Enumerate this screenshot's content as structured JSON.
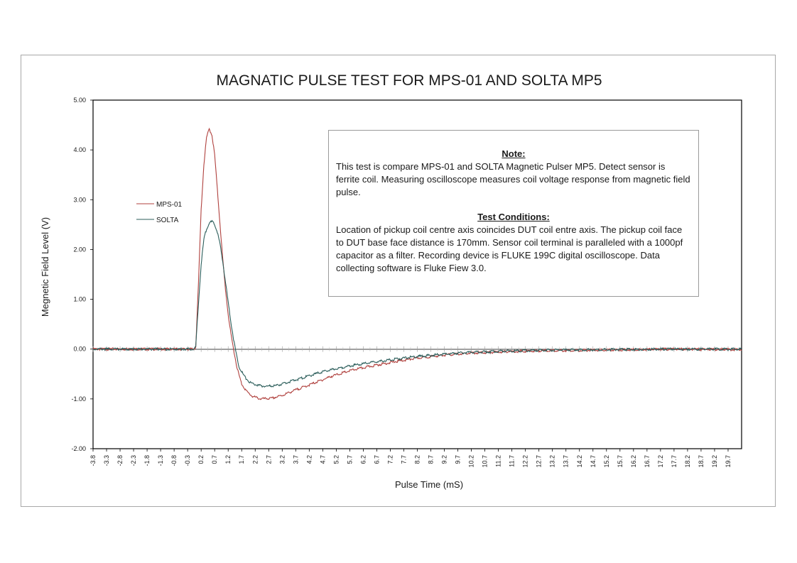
{
  "chart_data": {
    "type": "line",
    "title": "MAGNATIC PULSE TEST FOR MPS-01 AND SOLTA MP5",
    "xlabel": "Pulse Time (mS)",
    "ylabel": "Megnetic Field Level (V)",
    "xlim": [
      -3.8,
      20.2
    ],
    "ylim": [
      -2.0,
      5.0
    ],
    "yticks": [
      "5.00",
      "4.00",
      "3.00",
      "2.00",
      "1.00",
      "0.00",
      "-1.00",
      "-2.00"
    ],
    "ytick_values": [
      5,
      4,
      3,
      2,
      1,
      0,
      -1,
      -2
    ],
    "xtick_start": -3.8,
    "xtick_step": 0.5,
    "xtick_count": 48,
    "grid": false,
    "legend_placement": "left",
    "series": [
      {
        "name": "MPS-01",
        "color": "#b0413e",
        "points": [
          [
            -3.8,
            0.0
          ],
          [
            -0.05,
            0.0
          ],
          [
            0.0,
            0.05
          ],
          [
            0.1,
            1.3
          ],
          [
            0.2,
            2.8
          ],
          [
            0.3,
            3.7
          ],
          [
            0.4,
            4.25
          ],
          [
            0.5,
            4.42
          ],
          [
            0.6,
            4.3
          ],
          [
            0.7,
            3.9
          ],
          [
            0.8,
            3.2
          ],
          [
            0.9,
            2.5
          ],
          [
            1.0,
            1.8
          ],
          [
            1.1,
            1.2
          ],
          [
            1.2,
            0.7
          ],
          [
            1.3,
            0.3
          ],
          [
            1.4,
            0.0
          ],
          [
            1.5,
            -0.3
          ],
          [
            1.6,
            -0.52
          ],
          [
            1.7,
            -0.7
          ],
          [
            1.9,
            -0.86
          ],
          [
            2.1,
            -0.95
          ],
          [
            2.4,
            -1.0
          ],
          [
            2.8,
            -0.99
          ],
          [
            3.2,
            -0.93
          ],
          [
            3.6,
            -0.84
          ],
          [
            4.2,
            -0.72
          ],
          [
            5.0,
            -0.55
          ],
          [
            5.8,
            -0.42
          ],
          [
            6.6,
            -0.33
          ],
          [
            7.4,
            -0.25
          ],
          [
            8.2,
            -0.18
          ],
          [
            9.2,
            -0.12
          ],
          [
            10.2,
            -0.08
          ],
          [
            11.5,
            -0.05
          ],
          [
            13.0,
            -0.03
          ],
          [
            15.0,
            -0.02
          ],
          [
            17.5,
            0.0
          ],
          [
            20.2,
            -0.01
          ]
        ]
      },
      {
        "name": "SOLTA",
        "color": "#2b5d5a",
        "points": [
          [
            -3.8,
            0.0
          ],
          [
            -0.05,
            0.0
          ],
          [
            0.0,
            0.05
          ],
          [
            0.1,
            0.9
          ],
          [
            0.2,
            1.7
          ],
          [
            0.3,
            2.2
          ],
          [
            0.4,
            2.42
          ],
          [
            0.5,
            2.53
          ],
          [
            0.6,
            2.56
          ],
          [
            0.7,
            2.5
          ],
          [
            0.8,
            2.35
          ],
          [
            0.9,
            2.1
          ],
          [
            1.0,
            1.75
          ],
          [
            1.1,
            1.35
          ],
          [
            1.2,
            0.95
          ],
          [
            1.3,
            0.55
          ],
          [
            1.4,
            0.2
          ],
          [
            1.5,
            -0.1
          ],
          [
            1.6,
            -0.35
          ],
          [
            1.8,
            -0.55
          ],
          [
            2.0,
            -0.67
          ],
          [
            2.3,
            -0.73
          ],
          [
            2.6,
            -0.75
          ],
          [
            3.0,
            -0.73
          ],
          [
            3.5,
            -0.65
          ],
          [
            4.0,
            -0.57
          ],
          [
            4.6,
            -0.47
          ],
          [
            5.3,
            -0.38
          ],
          [
            6.0,
            -0.31
          ],
          [
            7.0,
            -0.23
          ],
          [
            8.0,
            -0.16
          ],
          [
            9.0,
            -0.11
          ],
          [
            10.0,
            -0.07
          ],
          [
            11.5,
            -0.04
          ],
          [
            13.0,
            -0.02
          ],
          [
            15.0,
            -0.01
          ],
          [
            17.5,
            0.0
          ],
          [
            20.2,
            0.0
          ]
        ]
      }
    ]
  },
  "note": {
    "heading": "Note:",
    "body": "This test is compare MPS-01 and SOLTA Magnetic Pulser MP5.  Detect sensor is ferrite coil. Measuring oscilloscope measures coil voltage response from magnetic field pulse.",
    "conditions_heading": "Test Conditions:",
    "conditions_body": "Location of pickup coil centre axis coincides DUT coil entre axis. The pickup coil face to DUT base face distance is 170mm. Sensor coil terminal is paralleled with a 1000pf capacitor as a filter. Recording device is FLUKE 199C digital oscilloscope. Data collecting software is Fluke Fiew 3.0."
  }
}
